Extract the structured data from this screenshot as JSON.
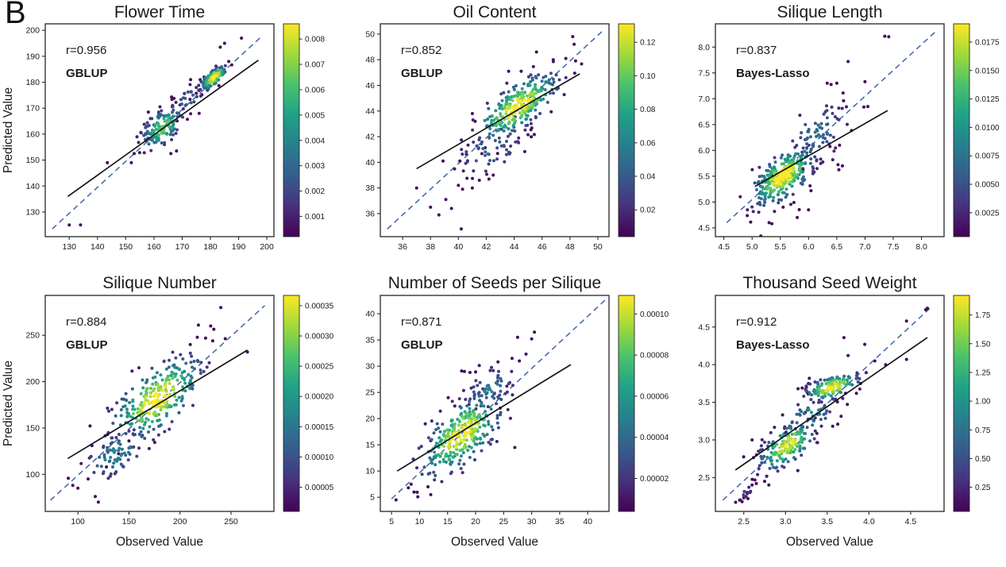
{
  "figure": {
    "panel_label": "B",
    "background": "#ffffff",
    "colormap": [
      "#440154",
      "#46327e",
      "#365c8d",
      "#277f8e",
      "#1fa187",
      "#4ac16d",
      "#a0da39",
      "#fde725"
    ],
    "fit_line_color": "#151515",
    "identity_line_color": "#3c66a5",
    "axis_color": "#262626"
  },
  "chart_data": [
    {
      "type": "scatter",
      "title": "Flower Time",
      "r_label": "r=0.956",
      "method": "GBLUP",
      "xlabel": "",
      "ylabel": "Predicted Value",
      "xlim": [
        121.5,
        202.5
      ],
      "ylim": [
        120.5,
        202.5
      ],
      "xticks": [
        130,
        140,
        150,
        160,
        170,
        180,
        190,
        200
      ],
      "xtick_labels": [
        "130",
        "140",
        "150",
        "160",
        "170",
        "180",
        "190",
        "200"
      ],
      "yticks": [
        130,
        140,
        150,
        160,
        170,
        180,
        190,
        200
      ],
      "ytick_labels": [
        "130",
        "140",
        "150",
        "160",
        "170",
        "180",
        "190",
        "200"
      ],
      "colorbar": {
        "vmin": 0.0002,
        "vmax": 0.0086,
        "ticks": [
          0.001,
          0.002,
          0.003,
          0.004,
          0.005,
          0.006,
          0.007,
          0.008
        ],
        "tick_labels": [
          "0.001",
          "0.002",
          "0.003",
          "0.004",
          "0.005",
          "0.006",
          "0.007",
          "0.008"
        ]
      },
      "fit_line": [
        [
          129.5,
          136
        ],
        [
          197,
          188.5
        ]
      ],
      "identity_line": [
        [
          124,
          123.5
        ],
        [
          198.5,
          198
        ]
      ],
      "seed": 101,
      "clusters": [
        {
          "n": 140,
          "cx": 163,
          "cy": 162.5,
          "sx": 3.8,
          "sy": 4.2,
          "rho": 0.55,
          "peak": 0.75
        },
        {
          "n": 120,
          "cx": 181.2,
          "cy": 181.8,
          "sx": 2.3,
          "sy": 2.3,
          "rho": 0.7,
          "peak": 1.0
        },
        {
          "n": 25,
          "cx": 172,
          "cy": 173,
          "sx": 3.0,
          "sy": 3.5,
          "rho": 0.5,
          "peak": 0.3
        }
      ],
      "outliers": [
        [
          130,
          125
        ],
        [
          134,
          125
        ],
        [
          143.5,
          149
        ],
        [
          152,
          149
        ],
        [
          153,
          152.5
        ],
        [
          191,
          197
        ],
        [
          185,
          195
        ],
        [
          183.5,
          193.5
        ],
        [
          186.5,
          188
        ],
        [
          158,
          168.5
        ],
        [
          168,
          153.5
        ],
        [
          166,
          152.5
        ],
        [
          173,
          181
        ],
        [
          176,
          168
        ]
      ]
    },
    {
      "type": "scatter",
      "title": "Oil Content",
      "r_label": "r=0.852",
      "method": "GBLUP",
      "xlabel": "",
      "ylabel": "",
      "xlim": [
        34.4,
        50.8
      ],
      "ylim": [
        34.2,
        50.8
      ],
      "xticks": [
        36,
        38,
        40,
        42,
        44,
        46,
        48,
        50
      ],
      "xtick_labels": [
        "36",
        "38",
        "40",
        "42",
        "44",
        "46",
        "48",
        "50"
      ],
      "yticks": [
        36,
        38,
        40,
        42,
        44,
        46,
        48,
        50
      ],
      "ytick_labels": [
        "36",
        "38",
        "40",
        "42",
        "44",
        "46",
        "48",
        "50"
      ],
      "colorbar": {
        "vmin": 0.004,
        "vmax": 0.131,
        "ticks": [
          0.02,
          0.04,
          0.06,
          0.08,
          0.1,
          0.12
        ],
        "tick_labels": [
          "0.02",
          "0.04",
          "0.06",
          "0.08",
          "0.10",
          "0.12"
        ]
      },
      "fit_line": [
        [
          37,
          39.5
        ],
        [
          48.7,
          46.9
        ]
      ],
      "identity_line": [
        [
          34.9,
          34.8
        ],
        [
          50.3,
          50.2
        ]
      ],
      "seed": 202,
      "clusters": [
        {
          "n": 270,
          "cx": 44.2,
          "cy": 44.3,
          "sx": 1.5,
          "sy": 1.35,
          "rho": 0.72,
          "peak": 1.0
        },
        {
          "n": 55,
          "cx": 42.3,
          "cy": 41.0,
          "sx": 1.4,
          "sy": 1.1,
          "rho": 0.35,
          "peak": 0.3
        }
      ],
      "outliers": [
        [
          37,
          38
        ],
        [
          38,
          36.5
        ],
        [
          38.6,
          35.9
        ],
        [
          39.1,
          37.1
        ],
        [
          39.5,
          36.4
        ],
        [
          40.2,
          34.8
        ],
        [
          40,
          38.2
        ],
        [
          40.3,
          37.9
        ],
        [
          41,
          38
        ],
        [
          41.5,
          38.6
        ],
        [
          42.5,
          39
        ],
        [
          48.2,
          49.8
        ],
        [
          48.3,
          49.2
        ],
        [
          47.7,
          48.1
        ],
        [
          48.4,
          47.9
        ],
        [
          46.8,
          48
        ],
        [
          45.6,
          48.6
        ],
        [
          44.5,
          47.1
        ],
        [
          43.6,
          47.1
        ],
        [
          40.1,
          40.1
        ],
        [
          38.9,
          40.1
        ],
        [
          41,
          43.8
        ],
        [
          41.2,
          43.2
        ]
      ]
    },
    {
      "type": "scatter",
      "title": "Silique Length",
      "r_label": "r=0.837",
      "method": "Bayes-Lasso",
      "xlabel": "",
      "ylabel": "",
      "xlim": [
        4.35,
        8.4
      ],
      "ylim": [
        4.33,
        8.45
      ],
      "xticks": [
        4.5,
        5.0,
        5.5,
        6.0,
        6.5,
        7.0,
        7.5,
        8.0
      ],
      "xtick_labels": [
        "4.5",
        "5.0",
        "5.5",
        "6.0",
        "6.5",
        "7.0",
        "7.5",
        "8.0"
      ],
      "yticks": [
        4.5,
        5.0,
        5.5,
        6.0,
        6.5,
        7.0,
        7.5,
        8.0
      ],
      "ytick_labels": [
        "4.5",
        "5.0",
        "5.5",
        "6.0",
        "6.5",
        "7.0",
        "7.5",
        "8.0"
      ],
      "colorbar": {
        "vmin": 0.0004,
        "vmax": 0.0191,
        "ticks": [
          0.0025,
          0.005,
          0.0075,
          0.01,
          0.0125,
          0.015,
          0.0175
        ],
        "tick_labels": [
          "0.0025",
          "0.0050",
          "0.0075",
          "0.0100",
          "0.0125",
          "0.0150",
          "0.0175"
        ]
      },
      "fit_line": [
        [
          5.05,
          5.3
        ],
        [
          7.4,
          6.77
        ]
      ],
      "identity_line": [
        [
          4.55,
          4.6
        ],
        [
          8.25,
          8.3
        ]
      ],
      "seed": 303,
      "clusters": [
        {
          "n": 300,
          "cx": 5.55,
          "cy": 5.5,
          "sx": 0.28,
          "sy": 0.29,
          "rho": 0.6,
          "peak": 1.0
        },
        {
          "n": 75,
          "cx": 6.15,
          "cy": 6.3,
          "sx": 0.3,
          "sy": 0.35,
          "rho": 0.4,
          "peak": 0.35
        }
      ],
      "outliers": [
        [
          7.35,
          8.21
        ],
        [
          7.42,
          8.2
        ],
        [
          6.7,
          7.72
        ],
        [
          6.5,
          7.3
        ],
        [
          6.33,
          7.3
        ],
        [
          7.0,
          7.33
        ],
        [
          6.98,
          6.84
        ],
        [
          6.62,
          6.96
        ],
        [
          7.05,
          6.85
        ],
        [
          5.3,
          4.6
        ],
        [
          5.35,
          4.58
        ],
        [
          5.8,
          4.7
        ],
        [
          6.0,
          4.85
        ],
        [
          5.55,
          4.9
        ],
        [
          6.55,
          6.1
        ],
        [
          6.6,
          5.7
        ]
      ]
    },
    {
      "type": "scatter",
      "title": "Silique Number",
      "r_label": "r=0.884",
      "method": "GBLUP",
      "xlabel": "Observed Value",
      "ylabel": "Predicted Value",
      "xlim": [
        68,
        292
      ],
      "ylim": [
        60,
        293
      ],
      "xticks": [
        100,
        150,
        200,
        250
      ],
      "xtick_labels": [
        "100",
        "150",
        "200",
        "250"
      ],
      "yticks": [
        100,
        150,
        200,
        250
      ],
      "ytick_labels": [
        "100",
        "150",
        "200",
        "250"
      ],
      "colorbar": {
        "vmin": 1e-05,
        "vmax": 0.000367,
        "ticks": [
          5e-05,
          0.0001,
          0.00015,
          0.0002,
          0.00025,
          0.0003,
          0.00035
        ],
        "tick_labels": [
          "0.00005",
          "0.00010",
          "0.00015",
          "0.00020",
          "0.00025",
          "0.00030",
          "0.00035"
        ]
      },
      "fit_line": [
        [
          90,
          117
        ],
        [
          266,
          234
        ]
      ],
      "identity_line": [
        [
          73,
          72
        ],
        [
          283,
          282
        ]
      ],
      "seed": 404,
      "clusters": [
        {
          "n": 280,
          "cx": 177,
          "cy": 181,
          "sx": 22,
          "sy": 23,
          "rho": 0.62,
          "peak": 1.0
        },
        {
          "n": 75,
          "cx": 138,
          "cy": 122,
          "sx": 16,
          "sy": 15,
          "rho": 0.55,
          "peak": 0.45
        }
      ],
      "outliers": [
        [
          240,
          280
        ],
        [
          120,
          70
        ],
        [
          117,
          76
        ],
        [
          266,
          232
        ],
        [
          230,
          260
        ],
        [
          218,
          261
        ],
        [
          110,
          95
        ],
        [
          100,
          85
        ],
        [
          225,
          247
        ],
        [
          232,
          244
        ],
        [
          210,
          240
        ],
        [
          95,
          88
        ],
        [
          128,
          108
        ],
        [
          150,
          136
        ]
      ]
    },
    {
      "type": "scatter",
      "title": "Number of Seeds per Silique",
      "r_label": "r=0.871",
      "method": "GBLUP",
      "xlabel": "Observed Value",
      "ylabel": "",
      "xlim": [
        3,
        43.8
      ],
      "ylim": [
        2.3,
        43.5
      ],
      "xticks": [
        5,
        10,
        15,
        20,
        25,
        30,
        35,
        40
      ],
      "xtick_labels": [
        "5",
        "10",
        "15",
        "20",
        "25",
        "30",
        "35",
        "40"
      ],
      "yticks": [
        5,
        10,
        15,
        20,
        25,
        30,
        35,
        40
      ],
      "ytick_labels": [
        "5",
        "10",
        "15",
        "20",
        "25",
        "30",
        "35",
        "40"
      ],
      "colorbar": {
        "vmin": 4e-06,
        "vmax": 0.000109,
        "ticks": [
          2e-05,
          4e-05,
          6e-05,
          8e-05,
          0.0001
        ],
        "tick_labels": [
          "0.00002",
          "0.00004",
          "0.00006",
          "0.00008",
          "0.00010"
        ]
      },
      "fit_line": [
        [
          6,
          10
        ],
        [
          37,
          30.3
        ]
      ],
      "identity_line": [
        [
          5,
          4.7
        ],
        [
          43.3,
          42.8
        ]
      ],
      "seed": 505,
      "clusters": [
        {
          "n": 300,
          "cx": 17.5,
          "cy": 17,
          "sx": 3.6,
          "sy": 4.0,
          "rho": 0.62,
          "peak": 1.0
        },
        {
          "n": 55,
          "cx": 22.5,
          "cy": 25.5,
          "sx": 2.5,
          "sy": 2.3,
          "rho": 0.35,
          "peak": 0.4
        }
      ],
      "outliers": [
        [
          27.5,
          35.5
        ],
        [
          30.5,
          36.5
        ],
        [
          30,
          35.2
        ],
        [
          29,
          32.3
        ],
        [
          27.8,
          31
        ],
        [
          26.5,
          31.5
        ],
        [
          27,
          14.5
        ],
        [
          5.8,
          4.5
        ],
        [
          8.5,
          7.5
        ],
        [
          8,
          6.8
        ],
        [
          9,
          6
        ],
        [
          12,
          5.5
        ],
        [
          11.5,
          7
        ],
        [
          18,
          29
        ],
        [
          19,
          28.8
        ],
        [
          20,
          28.9
        ],
        [
          24,
          30.8
        ],
        [
          12,
          15.8
        ],
        [
          17.5,
          29.1
        ]
      ]
    },
    {
      "type": "scatter",
      "title": "Thousand Seed Weight",
      "r_label": "r=0.912",
      "method": "Bayes-Lasso",
      "xlabel": "Observed Value",
      "ylabel": "",
      "xlim": [
        2.16,
        4.9
      ],
      "ylim": [
        2.05,
        4.92
      ],
      "xticks": [
        2.5,
        3.0,
        3.5,
        4.0,
        4.5
      ],
      "xtick_labels": [
        "2.5",
        "3.0",
        "3.5",
        "4.0",
        "4.5"
      ],
      "yticks": [
        2.5,
        3.0,
        3.5,
        4.0,
        4.5
      ],
      "ytick_labels": [
        "2.5",
        "3.0",
        "3.5",
        "4.0",
        "4.5"
      ],
      "colorbar": {
        "vmin": 0.04,
        "vmax": 1.92,
        "ticks": [
          0.25,
          0.5,
          0.75,
          1.0,
          1.25,
          1.5,
          1.75
        ],
        "tick_labels": [
          "0.25",
          "0.50",
          "0.75",
          "1.00",
          "1.25",
          "1.50",
          "1.75"
        ]
      },
      "fit_line": [
        [
          2.4,
          2.6
        ],
        [
          4.7,
          4.36
        ]
      ],
      "identity_line": [
        [
          2.25,
          2.2
        ],
        [
          4.76,
          4.78
        ]
      ],
      "seed": 606,
      "clusters": [
        {
          "n": 170,
          "cx": 3.02,
          "cy": 2.93,
          "sx": 0.17,
          "sy": 0.17,
          "rho": 0.6,
          "peak": 0.95
        },
        {
          "n": 140,
          "cx": 3.56,
          "cy": 3.7,
          "sx": 0.16,
          "sy": 0.09,
          "rho": 0.5,
          "peak": 1.0
        },
        {
          "n": 45,
          "cx": 3.3,
          "cy": 3.33,
          "sx": 0.17,
          "sy": 0.14,
          "rho": 0.45,
          "peak": 0.45
        },
        {
          "n": 14,
          "cx": 2.52,
          "cy": 2.3,
          "sx": 0.08,
          "sy": 0.07,
          "rho": 0.6,
          "peak": 0.15
        }
      ],
      "outliers": [
        [
          2.45,
          2.2
        ],
        [
          2.5,
          2.23
        ],
        [
          2.55,
          2.22
        ],
        [
          2.48,
          2.18
        ],
        [
          2.6,
          2.4
        ],
        [
          2.65,
          2.42
        ],
        [
          2.6,
          3.0
        ],
        [
          4.45,
          4.58
        ],
        [
          4.68,
          4.73
        ],
        [
          4.7,
          4.75
        ],
        [
          3.7,
          4.36
        ],
        [
          3.95,
          4.27
        ],
        [
          4.45,
          4.07
        ],
        [
          3.75,
          4.12
        ],
        [
          4.07,
          4.05
        ],
        [
          4.2,
          4.0
        ],
        [
          3.72,
          3.62
        ],
        [
          3.85,
          3.62
        ],
        [
          3.9,
          3.75
        ],
        [
          2.75,
          2.45
        ],
        [
          2.8,
          2.4
        ],
        [
          3.15,
          3.68
        ],
        [
          3.2,
          3.69
        ],
        [
          3.25,
          3.7
        ]
      ]
    }
  ]
}
